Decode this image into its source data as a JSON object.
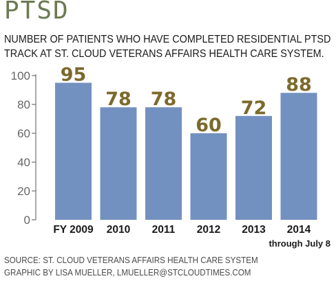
{
  "title": "PTSD",
  "subtitle_lines": [
    "NUMBER OF PATIENTS WHO HAVE COMPLETED RESIDENTIAL PTSD",
    "TRACK AT ST. CLOUD VETERANS AFFAIRS HEALTH CARE SYSTEM."
  ],
  "source": "SOURCE: ST. CLOUD VETERANS AFFAIRS HEALTH CARE SYSTEM",
  "credit": "GRAPHIC BY LISA MUELLER, LMUELLER@STCLOUDTIMES.COM",
  "colors": {
    "bar": "#7391c0",
    "value_label": "#7c6a2c",
    "axis": "#555555",
    "tick_text": "#666666",
    "category_text": "#1a1a1a"
  },
  "chart_data": {
    "type": "bar",
    "categories": [
      "FY 2009",
      "2010",
      "2011",
      "2012",
      "2013",
      "2014"
    ],
    "values": [
      95,
      78,
      78,
      60,
      72,
      88
    ],
    "value_labels": [
      "95",
      "78",
      "78",
      "60",
      "72",
      "88"
    ],
    "category_note": "through July 8",
    "ylim": [
      0,
      100
    ],
    "yticks": [
      0,
      20,
      40,
      60,
      80,
      100
    ],
    "grid": false,
    "legend": "none"
  }
}
